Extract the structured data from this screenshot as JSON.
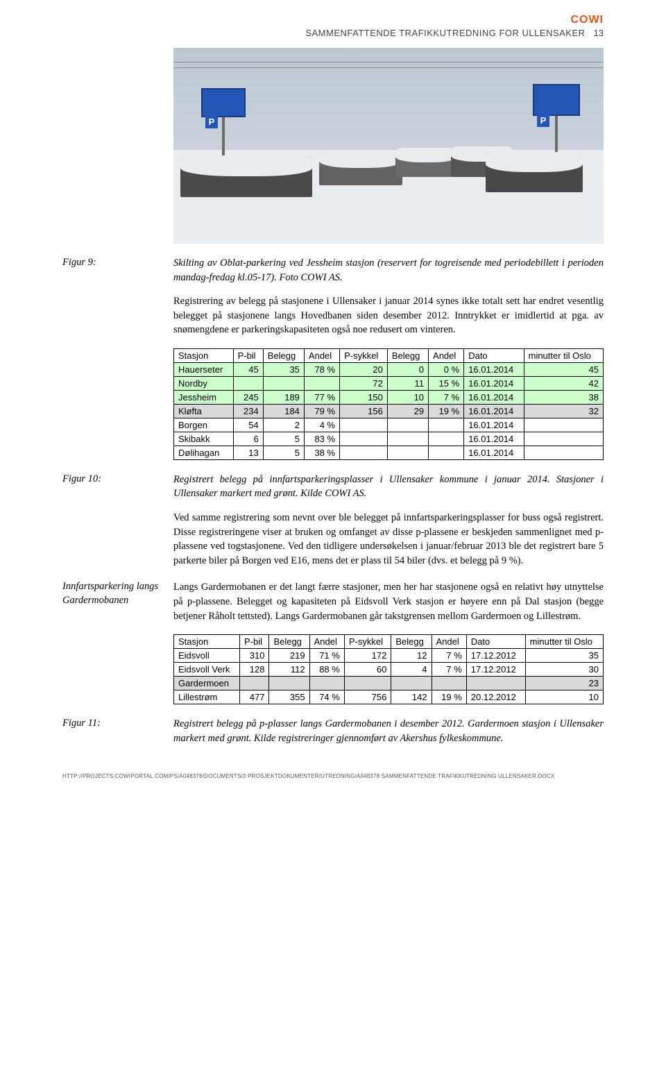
{
  "brand": "COWI",
  "header": {
    "title": "SAMMENFATTENDE TRAFIKKUTREDNING FOR ULLENSAKER",
    "page_number": "13"
  },
  "figure9": {
    "label": "Figur 9:",
    "caption": "Skilting av Oblat-parkering ved Jessheim stasjon (reservert for togreisende med periodebillett i perioden mandag-fredag kl.05-17). Foto COWI AS."
  },
  "paragraph1": "Registrering av belegg på stasjonene i Ullensaker i januar 2014 synes ikke totalt sett har endret vesentlig belegget på stasjonene langs Hovedbanen siden desember 2012. Inntrykket er imidlertid at pga. av snømengdene er parkeringskapasiteten også noe redusert om vinteren.",
  "table1": {
    "columns": [
      "Stasjon",
      "P-bil",
      "Belegg",
      "Andel",
      "P-sykkel",
      "Belegg",
      "Andel",
      "Dato",
      "minutter til Oslo"
    ],
    "col_classes": [
      "txt",
      "",
      "",
      "",
      "",
      "",
      "",
      "txt",
      ""
    ],
    "rows": [
      {
        "cells": [
          "Hauerseter",
          "45",
          "35",
          "78 %",
          "20",
          "0",
          "0 %",
          "16.01.2014",
          "45"
        ],
        "hl": "green"
      },
      {
        "cells": [
          "Nordby",
          "",
          "",
          "",
          "72",
          "11",
          "15 %",
          "16.01.2014",
          "42"
        ],
        "hl": "green"
      },
      {
        "cells": [
          "Jessheim",
          "245",
          "189",
          "77 %",
          "150",
          "10",
          "7 %",
          "16.01.2014",
          "38"
        ],
        "hl": "green"
      },
      {
        "cells": [
          "Kløfta",
          "234",
          "184",
          "79 %",
          "156",
          "29",
          "19 %",
          "16.01.2014",
          "32"
        ],
        "hl": "grey"
      },
      {
        "cells": [
          "Borgen",
          "54",
          "2",
          "4 %",
          "",
          "",
          "",
          "16.01.2014",
          ""
        ],
        "hl": ""
      },
      {
        "cells": [
          "Skibakk",
          "6",
          "5",
          "83 %",
          "",
          "",
          "",
          "16.01.2014",
          ""
        ],
        "hl": ""
      },
      {
        "cells": [
          "Dølihagan",
          "13",
          "5",
          "38 %",
          "",
          "",
          "",
          "16.01.2014",
          ""
        ],
        "hl": ""
      }
    ]
  },
  "figure10": {
    "label": "Figur 10:",
    "caption": "Registrert belegg på innfartsparkeringsplasser i Ullensaker kommune i januar 2014. Stasjoner i Ullensaker markert med grønt. Kilde COWI AS."
  },
  "paragraph2": "Ved samme registrering som nevnt over ble belegget på innfartsparkeringsplasser for buss også registrert. Disse registreringene viser at bruken og omfanget av disse p-plassene er beskjeden sammenlignet med p-plassene ved togstasjonene. Ved den tidligere undersøkelsen i januar/februar 2013 ble det registrert bare 5 parkerte biler på Borgen ved E16, mens det er plass til 54 biler (dvs. et belegg på 9 %).",
  "margin_note": "Innfartsparkering langs Gardermobanen",
  "paragraph3": "Langs Gardermobanen er det langt færre stasjoner, men her har stasjonene også en relativt høy utnyttelse på p-plassene. Belegget og kapasiteten på Eidsvoll Verk stasjon er høyere enn på Dal stasjon (begge betjener Råholt tettsted). Langs Gardermobanen går takstgrensen mellom Gardermoen og Lillestrøm.",
  "table2": {
    "columns": [
      "Stasjon",
      "P-bil",
      "Belegg",
      "Andel",
      "P-sykkel",
      "Belegg",
      "Andel",
      "Dato",
      "minutter til Oslo"
    ],
    "col_classes": [
      "txt",
      "",
      "",
      "",
      "",
      "",
      "",
      "txt",
      ""
    ],
    "rows": [
      {
        "cells": [
          "Eidsvoll",
          "310",
          "219",
          "71 %",
          "172",
          "12",
          "7 %",
          "17.12.2012",
          "35"
        ],
        "hl": ""
      },
      {
        "cells": [
          "Eidsvoll Verk",
          "128",
          "112",
          "88 %",
          "60",
          "4",
          "7 %",
          "17.12.2012",
          "30"
        ],
        "hl": ""
      },
      {
        "cells": [
          "Gardermoen",
          "",
          "",
          "",
          "",
          "",
          "",
          "",
          "23"
        ],
        "hl": "grey"
      },
      {
        "cells": [
          "Lillestrøm",
          "477",
          "355",
          "74 %",
          "756",
          "142",
          "19 %",
          "20.12.2012",
          "10"
        ],
        "hl": ""
      }
    ]
  },
  "figure11": {
    "label": "Figur 11:",
    "caption": "Registrert belegg på p-plasser langs Gardermobanen i desember 2012. Gardermoen stasjon i Ullensaker markert med grønt. Kilde registreringer gjennomført av Akershus fylkeskommune."
  },
  "footer": "HTTP://PROJECTS.COWIPORTAL.COM/PS/A048378/DOCUMENTS/3 PROSJEKTDOKUMENTER/UTREDNING/A048378 SAMMENFATTENDE TRAFIKKUTREDNING ULLENSAKER.DOCX"
}
